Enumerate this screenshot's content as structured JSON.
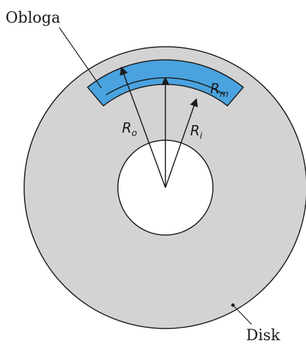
{
  "labels": {
    "lining": "Obloga",
    "disk": "Disk"
  },
  "symbols": {
    "r_o": {
      "base": "R",
      "sub": "o"
    },
    "r_i": {
      "base": "R",
      "sub": "i"
    },
    "r_m": {
      "base": "R",
      "sub": "m"
    }
  },
  "colors": {
    "disk_fill": "#d3d3d3",
    "lining_fill": "#4aa3df",
    "stroke": "#1a1a1a",
    "hole_fill": "#ffffff"
  }
}
